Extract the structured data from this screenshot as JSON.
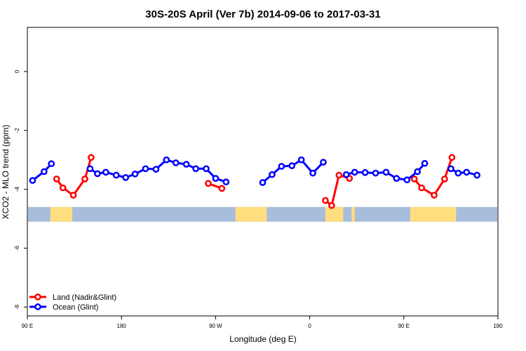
{
  "chart_data": {
    "type": "line",
    "title": "30S-20S April (Ver 7b)   2014-09-06 to 2017-03-31",
    "xlabel": "Longitude (deg E)",
    "ylabel": "XCO2 - MLO trend (ppm)",
    "xlim": [
      90,
      540
    ],
    "ylim": [
      -8.3,
      1.5
    ],
    "x_ticks": [
      {
        "value": 90,
        "label": "90 E"
      },
      {
        "value": 180,
        "label": "180"
      },
      {
        "value": 270,
        "label": "90 W"
      },
      {
        "value": 360,
        "label": "0"
      },
      {
        "value": 450,
        "label": "90 E"
      },
      {
        "value": 540,
        "label": "180"
      }
    ],
    "y_ticks": [
      {
        "value": 0,
        "label": "0"
      },
      {
        "value": -2,
        "label": "-2"
      },
      {
        "value": -4,
        "label": "-4"
      },
      {
        "value": -6,
        "label": "-6"
      },
      {
        "value": -8,
        "label": "-8"
      }
    ],
    "legend_position": "bottom-left",
    "series": [
      {
        "name": "Land (Nadir&Glint)",
        "color": "#ff0000",
        "segments": [
          [
            [
              118,
              -3.65
            ],
            [
              124,
              -3.95
            ],
            [
              134,
              -4.2
            ],
            [
              145,
              -3.65
            ],
            [
              151,
              -2.92
            ]
          ],
          [
            [
              263,
              -3.8
            ],
            [
              276,
              -3.97
            ]
          ],
          [
            [
              375,
              -4.38
            ],
            [
              381,
              -4.55
            ],
            [
              388,
              -3.52
            ],
            [
              398,
              -3.63
            ]
          ],
          [
            [
              460,
              -3.65
            ],
            [
              467,
              -3.95
            ],
            [
              479,
              -4.2
            ],
            [
              489,
              -3.65
            ],
            [
              496,
              -2.92
            ]
          ]
        ]
      },
      {
        "name": "Ocean (Glint)",
        "color": "#0000ff",
        "segments": [
          [
            [
              95,
              -3.7
            ],
            [
              106,
              -3.4
            ],
            [
              113,
              -3.13
            ]
          ],
          [
            [
              150,
              -3.3
            ],
            [
              157,
              -3.47
            ],
            [
              165,
              -3.42
            ],
            [
              175,
              -3.52
            ],
            [
              184,
              -3.6
            ],
            [
              193,
              -3.48
            ],
            [
              203,
              -3.3
            ],
            [
              213,
              -3.32
            ],
            [
              223,
              -3.0
            ],
            [
              232,
              -3.1
            ],
            [
              242,
              -3.15
            ],
            [
              251,
              -3.3
            ],
            [
              261,
              -3.3
            ],
            [
              270,
              -3.63
            ],
            [
              280,
              -3.75
            ]
          ],
          [
            [
              315,
              -3.77
            ],
            [
              324,
              -3.5
            ],
            [
              333,
              -3.22
            ],
            [
              343,
              -3.2
            ],
            [
              352,
              -3.0
            ],
            [
              363,
              -3.45
            ],
            [
              373,
              -3.08
            ]
          ],
          [
            [
              395,
              -3.5
            ],
            [
              403,
              -3.42
            ],
            [
              413,
              -3.43
            ],
            [
              423,
              -3.45
            ],
            [
              433,
              -3.42
            ],
            [
              443,
              -3.63
            ],
            [
              453,
              -3.68
            ],
            [
              463,
              -3.4
            ],
            [
              470,
              -3.12
            ]
          ],
          [
            [
              495,
              -3.3
            ],
            [
              502,
              -3.45
            ],
            [
              510,
              -3.42
            ],
            [
              520,
              -3.52
            ]
          ]
        ]
      }
    ],
    "land_ocean_band": {
      "y_top": -4.6,
      "y_bottom": -5.1,
      "ocean_color": "#a6bddb",
      "land_color": "#ffde80",
      "land_ranges": [
        [
          112,
          133
        ],
        [
          289,
          319
        ],
        [
          375,
          392
        ],
        [
          400,
          403
        ],
        [
          456,
          500
        ]
      ]
    }
  }
}
